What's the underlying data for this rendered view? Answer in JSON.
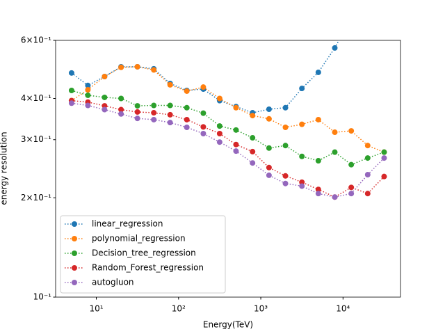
{
  "chart_data": {
    "type": "line",
    "x_label": "Energy(TeV)",
    "y_label": "energy resolution",
    "x_log": true,
    "y_log": true,
    "legend": "lower left",
    "x": [
      5,
      7.9,
      12.6,
      20,
      31.6,
      50,
      79,
      126,
      200,
      316,
      500,
      794,
      1259,
      1995,
      3162,
      5012,
      7943,
      12589,
      19953,
      31623
    ],
    "xlim": [
      3.2,
      50000
    ],
    "xticks": [
      {
        "value": 10,
        "label": "10¹"
      },
      {
        "value": 100,
        "label": "10²"
      },
      {
        "value": 1000,
        "label": "10³"
      },
      {
        "value": 10000,
        "label": "10⁴"
      }
    ],
    "ylim": [
      0.1,
      0.6
    ],
    "yticks": [
      {
        "value": 0.1,
        "label": "10⁻¹"
      },
      {
        "value": 0.2,
        "label": "2×10⁻¹"
      },
      {
        "value": 0.3,
        "label": "3×10⁻¹"
      },
      {
        "value": 0.4,
        "label": "4×10⁻¹"
      },
      {
        "value": 0.6,
        "label": "6×10⁻¹"
      }
    ],
    "series": [
      {
        "name": "linear_regression",
        "color": "#1f77b4",
        "values": [
          0.478,
          0.438,
          0.466,
          0.499,
          0.499,
          0.492,
          0.444,
          0.423,
          0.427,
          0.394,
          0.378,
          0.362,
          0.371,
          0.375,
          0.429,
          0.48,
          0.569,
          0.7,
          null,
          null
        ]
      },
      {
        "name": "polynomial_regression",
        "color": "#ff7f0e",
        "values": [
          0.394,
          0.425,
          0.466,
          0.497,
          0.499,
          0.488,
          0.44,
          0.421,
          0.433,
          0.4,
          0.375,
          0.355,
          0.347,
          0.327,
          0.334,
          0.345,
          0.316,
          0.319,
          0.288,
          0.275
        ]
      },
      {
        "name": "Decision_tree_regression",
        "color": "#2ca02c",
        "values": [
          0.423,
          0.409,
          0.403,
          0.4,
          0.38,
          0.381,
          0.381,
          0.375,
          0.361,
          0.33,
          0.321,
          0.304,
          0.283,
          0.288,
          0.267,
          0.259,
          0.275,
          0.252,
          0.264,
          0.275
        ]
      },
      {
        "name": "Random_Forest_regression",
        "color": "#d62728",
        "values": [
          0.394,
          0.39,
          0.38,
          0.37,
          0.364,
          0.362,
          0.357,
          0.345,
          0.328,
          0.313,
          0.29,
          0.276,
          0.247,
          0.233,
          0.223,
          0.212,
          0.201,
          0.215,
          0.206,
          0.232
        ]
      },
      {
        "name": "autogluon",
        "color": "#9467bd",
        "values": [
          0.387,
          0.381,
          0.37,
          0.359,
          0.348,
          0.345,
          0.338,
          0.327,
          0.313,
          0.295,
          0.277,
          0.255,
          0.234,
          0.221,
          0.217,
          0.206,
          0.201,
          0.206,
          0.235,
          0.264
        ]
      }
    ]
  }
}
